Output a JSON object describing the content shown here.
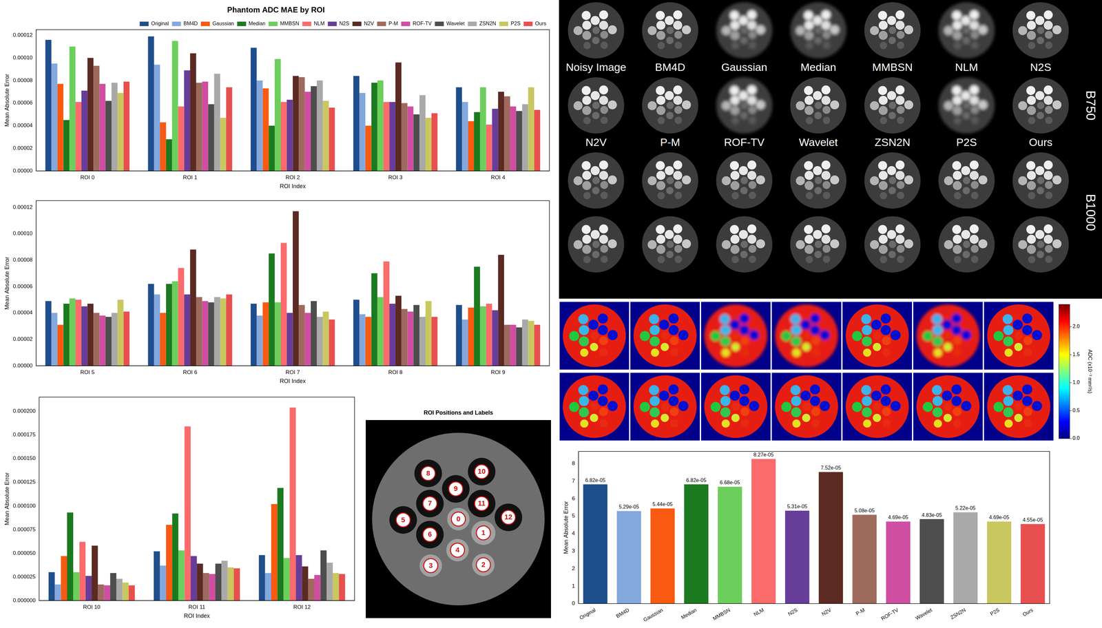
{
  "chart_data": [
    {
      "type": "bar",
      "title": "Phantom ADC MAE by ROI",
      "xlabel": "ROI Index",
      "ylabel": "Mean Absolute Error",
      "categories": [
        "ROI 0",
        "ROI 1",
        "ROI 2",
        "ROI 3",
        "ROI 4"
      ],
      "series": [
        {
          "name": "Original",
          "color": "#1f4e8c",
          "values": [
            0.000116,
            0.000119,
            0.000109,
            8.4e-05,
            7.4e-05
          ]
        },
        {
          "name": "BM4D",
          "color": "#82a8de",
          "values": [
            9.5e-05,
            9.4e-05,
            8e-05,
            6.9e-05,
            6.1e-05
          ]
        },
        {
          "name": "Gaussian",
          "color": "#f95a12",
          "values": [
            7.7e-05,
            4.3e-05,
            7.3e-05,
            4e-05,
            4.4e-05
          ]
        },
        {
          "name": "Median",
          "color": "#1b7a1f",
          "values": [
            4.5e-05,
            2.8e-05,
            4e-05,
            7.8e-05,
            5.2e-05
          ]
        },
        {
          "name": "MMBSN",
          "color": "#6ccf5c",
          "values": [
            0.00011,
            0.000115,
            9.9e-05,
            8e-05,
            7.4e-05
          ]
        },
        {
          "name": "NLM",
          "color": "#fb6b6b",
          "values": [
            6.1e-05,
            5.7e-05,
            6.1e-05,
            6.1e-05,
            4.1e-05
          ]
        },
        {
          "name": "N2S",
          "color": "#673d9a",
          "values": [
            7.1e-05,
            8.9e-05,
            6.3e-05,
            6.1e-05,
            5.5e-05
          ]
        },
        {
          "name": "N2V",
          "color": "#5b2a22",
          "values": [
            0.0001,
            0.000104,
            8.4e-05,
            9.6e-05,
            7e-05
          ]
        },
        {
          "name": "P-M",
          "color": "#9e6a5e",
          "values": [
            9.3e-05,
            7.8e-05,
            8.3e-05,
            6e-05,
            6.6e-05
          ]
        },
        {
          "name": "ROF-TV",
          "color": "#d04ea2",
          "values": [
            7.7e-05,
            7.9e-05,
            7e-05,
            5.7e-05,
            5.7e-05
          ]
        },
        {
          "name": "Wavelet",
          "color": "#4d4d4d",
          "values": [
            6.2e-05,
            5.9e-05,
            7.5e-05,
            5e-05,
            5.3e-05
          ]
        },
        {
          "name": "ZSN2N",
          "color": "#a9a9a9",
          "values": [
            7.8e-05,
            8.6e-05,
            8e-05,
            6.7e-05,
            5.9e-05
          ]
        },
        {
          "name": "P2S",
          "color": "#c9c760",
          "values": [
            6.9e-05,
            4.7e-05,
            6.2e-05,
            4.7e-05,
            7.4e-05
          ]
        },
        {
          "name": "Ours",
          "color": "#e8504f",
          "values": [
            7.9e-05,
            7.4e-05,
            5.6e-05,
            5.1e-05,
            5.4e-05
          ]
        }
      ],
      "ylim": [
        0,
        0.000125
      ],
      "yticks": [
        {
          "value": 0,
          "label": "0.00000"
        },
        {
          "value": 2e-05,
          "label": "0.00002"
        },
        {
          "value": 4e-05,
          "label": "0.00004"
        },
        {
          "value": 6e-05,
          "label": "0.00006"
        },
        {
          "value": 8e-05,
          "label": "0.00008"
        },
        {
          "value": 0.0001,
          "label": "0.00010"
        },
        {
          "value": 0.00012,
          "label": "0.00012"
        }
      ],
      "grid": false,
      "legend": "top"
    },
    {
      "type": "bar",
      "xlabel": "ROI Index",
      "ylabel": "Mean Absolute Error",
      "categories": [
        "ROI 5",
        "ROI 6",
        "ROI 7",
        "ROI 8",
        "ROI 9"
      ],
      "series": [
        {
          "name": "Original",
          "color": "#1f4e8c",
          "values": [
            4.9e-05,
            6.2e-05,
            4.7e-05,
            5e-05,
            4.6e-05
          ]
        },
        {
          "name": "BM4D",
          "color": "#82a8de",
          "values": [
            4e-05,
            5.4e-05,
            3.8e-05,
            3.9e-05,
            3.5e-05
          ]
        },
        {
          "name": "Gaussian",
          "color": "#f95a12",
          "values": [
            3.1e-05,
            4e-05,
            4.8e-05,
            3.7e-05,
            4.4e-05
          ]
        },
        {
          "name": "Median",
          "color": "#1b7a1f",
          "values": [
            4.7e-05,
            6.2e-05,
            8.5e-05,
            7e-05,
            7.5e-05
          ]
        },
        {
          "name": "MMBSN",
          "color": "#6ccf5c",
          "values": [
            5.1e-05,
            6.4e-05,
            4.8e-05,
            5.2e-05,
            4.5e-05
          ]
        },
        {
          "name": "NLM",
          "color": "#fb6b6b",
          "values": [
            5e-05,
            7.4e-05,
            9.3e-05,
            7.9e-05,
            4.7e-05
          ]
        },
        {
          "name": "N2S",
          "color": "#673d9a",
          "values": [
            4.5e-05,
            5.4e-05,
            4e-05,
            4.7e-05,
            4.2e-05
          ]
        },
        {
          "name": "N2V",
          "color": "#5b2a22",
          "values": [
            4.7e-05,
            8.8e-05,
            0.000117,
            5.3e-05,
            8.4e-05
          ]
        },
        {
          "name": "P-M",
          "color": "#9e6a5e",
          "values": [
            4e-05,
            5.2e-05,
            4.6e-05,
            4.3e-05,
            3.1e-05
          ]
        },
        {
          "name": "ROF-TV",
          "color": "#d04ea2",
          "values": [
            3.8e-05,
            4.9e-05,
            4e-05,
            4.1e-05,
            3.1e-05
          ]
        },
        {
          "name": "Wavelet",
          "color": "#4d4d4d",
          "values": [
            3.7e-05,
            4.8e-05,
            4.9e-05,
            4.6e-05,
            2.9e-05
          ]
        },
        {
          "name": "ZSN2N",
          "color": "#a9a9a9",
          "values": [
            4e-05,
            5.2e-05,
            3.7e-05,
            3.7e-05,
            3.5e-05
          ]
        },
        {
          "name": "P2S",
          "color": "#c9c760",
          "values": [
            5e-05,
            5.1e-05,
            4.1e-05,
            4.9e-05,
            3.4e-05
          ]
        },
        {
          "name": "Ours",
          "color": "#e8504f",
          "values": [
            4.1e-05,
            5.4e-05,
            3.5e-05,
            3.7e-05,
            3.1e-05
          ]
        }
      ],
      "ylim": [
        0,
        0.000125
      ],
      "yticks": [
        {
          "value": 0,
          "label": "0.00000"
        },
        {
          "value": 2e-05,
          "label": "0.00002"
        },
        {
          "value": 4e-05,
          "label": "0.00004"
        },
        {
          "value": 6e-05,
          "label": "0.00006"
        },
        {
          "value": 8e-05,
          "label": "0.00008"
        },
        {
          "value": 0.0001,
          "label": "0.00010"
        },
        {
          "value": 0.00012,
          "label": "0.00012"
        }
      ],
      "grid": false
    },
    {
      "type": "bar",
      "xlabel": "ROI Index",
      "ylabel": "Mean Absolute Error",
      "categories": [
        "ROI 10",
        "ROI 11",
        "ROI 12"
      ],
      "series": [
        {
          "name": "Original",
          "color": "#1f4e8c",
          "values": [
            3e-05,
            5.2e-05,
            4.8e-05
          ]
        },
        {
          "name": "BM4D",
          "color": "#82a8de",
          "values": [
            1.7e-05,
            3.7e-05,
            2.9e-05
          ]
        },
        {
          "name": "Gaussian",
          "color": "#f95a12",
          "values": [
            4.7e-05,
            8e-05,
            0.000102
          ]
        },
        {
          "name": "Median",
          "color": "#1b7a1f",
          "values": [
            9.3e-05,
            9.2e-05,
            0.000119
          ]
        },
        {
          "name": "MMBSN",
          "color": "#6ccf5c",
          "values": [
            3e-05,
            5.3e-05,
            4.5e-05
          ]
        },
        {
          "name": "NLM",
          "color": "#fb6b6b",
          "values": [
            6.2e-05,
            0.000184,
            0.000204
          ]
        },
        {
          "name": "N2S",
          "color": "#673d9a",
          "values": [
            2.6e-05,
            4.7e-05,
            4.8e-05
          ]
        },
        {
          "name": "N2V",
          "color": "#5b2a22",
          "values": [
            5.8e-05,
            3.9e-05,
            3.6e-05
          ]
        },
        {
          "name": "P-M",
          "color": "#9e6a5e",
          "values": [
            1.7e-05,
            2.9e-05,
            2.3e-05
          ]
        },
        {
          "name": "ROF-TV",
          "color": "#d04ea2",
          "values": [
            1.6e-05,
            2.8e-05,
            2.7e-05
          ]
        },
        {
          "name": "Wavelet",
          "color": "#4d4d4d",
          "values": [
            2.9e-05,
            3.9e-05,
            5.3e-05
          ]
        },
        {
          "name": "ZSN2N",
          "color": "#a9a9a9",
          "values": [
            2.3e-05,
            4.2e-05,
            4e-05
          ]
        },
        {
          "name": "P2S",
          "color": "#c9c760",
          "values": [
            1.9e-05,
            3.5e-05,
            2.9e-05
          ]
        },
        {
          "name": "Ours",
          "color": "#e8504f",
          "values": [
            1.6e-05,
            3.4e-05,
            2.8e-05
          ]
        }
      ],
      "ylim": [
        0,
        0.000215
      ],
      "yticks": [
        {
          "value": 0,
          "label": "0.000000"
        },
        {
          "value": 2.5e-05,
          "label": "0.000025"
        },
        {
          "value": 5e-05,
          "label": "0.000050"
        },
        {
          "value": 7.5e-05,
          "label": "0.000075"
        },
        {
          "value": 0.0001,
          "label": "0.000100"
        },
        {
          "value": 0.000125,
          "label": "0.000125"
        },
        {
          "value": 0.00015,
          "label": "0.000150"
        },
        {
          "value": 0.000175,
          "label": "0.000175"
        },
        {
          "value": 0.0002,
          "label": "0.000200"
        }
      ],
      "grid": false
    },
    {
      "type": "bar",
      "ylabel": "Mean Absolute Error",
      "categories": [
        "Original",
        "BM4D",
        "Gaussian",
        "Median",
        "MMBSN",
        "NLM",
        "N2S",
        "N2V",
        "P-M",
        "ROF-TV",
        "Wavelet",
        "ZSN2N",
        "P2S",
        "Ours"
      ],
      "values": [
        6.82,
        5.29,
        5.44,
        6.82,
        6.68,
        8.27,
        5.31,
        7.52,
        5.08,
        4.69,
        4.83,
        5.22,
        4.69,
        4.55
      ],
      "value_labels": [
        "6.82e-05",
        "5.29e-05",
        "5.44e-05",
        "6.82e-05",
        "6.68e-05",
        "8.27e-05",
        "5.31e-05",
        "7.52e-05",
        "5.08e-05",
        "4.69e-05",
        "4.83e-05",
        "5.22e-05",
        "4.69e-05",
        "4.55e-05"
      ],
      "colors": [
        "#1f4e8c",
        "#82a8de",
        "#f95a12",
        "#1b7a1f",
        "#6ccf5c",
        "#fb6b6b",
        "#673d9a",
        "#5b2a22",
        "#9e6a5e",
        "#d04ea2",
        "#4d4d4d",
        "#a9a9a9",
        "#c9c760",
        "#e8504f"
      ],
      "ylim": [
        0,
        8.7
      ],
      "yticks": [
        0,
        1,
        2,
        3,
        4,
        5,
        6,
        7,
        8
      ],
      "grid": false,
      "data_labels": true
    }
  ],
  "image_grid": {
    "labels": [
      [
        "Noisy Image",
        "BM4D",
        "Gaussian",
        "Median",
        "MMBSN",
        "NLM",
        "N2S"
      ],
      [
        "N2V",
        "P-M",
        "ROF-TV",
        "Wavelet",
        "ZSN2N",
        "P2S",
        "Ours"
      ]
    ],
    "side_labels": [
      "B750",
      "B1000"
    ]
  },
  "adc_maps": {
    "colorbar": {
      "range": [
        0,
        2.4
      ],
      "ticks": [
        {
          "value": 0,
          "label": "0.0"
        },
        {
          "value": 0.5,
          "label": "0.5"
        },
        {
          "value": 1,
          "label": "1.0"
        },
        {
          "value": 1.5,
          "label": "1.5"
        },
        {
          "value": 2,
          "label": "2.0"
        }
      ],
      "label": "ADC (x10⁻³ mm²/s)"
    }
  },
  "roi_map": {
    "title": "ROI Positions and Labels",
    "labels": [
      0,
      1,
      2,
      3,
      4,
      5,
      6,
      7,
      8,
      9,
      10,
      11,
      12
    ]
  }
}
